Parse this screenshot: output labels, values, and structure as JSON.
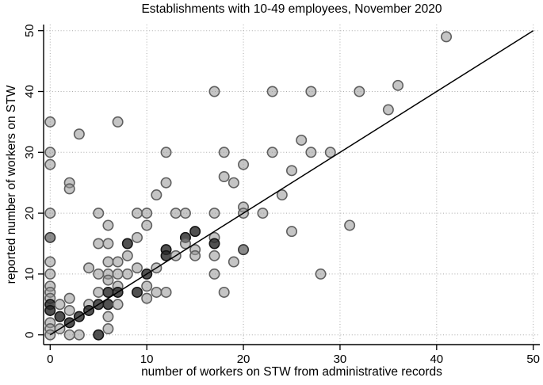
{
  "chart_data": {
    "type": "scatter",
    "title": "Establishments with 10-49 employees, November 2020",
    "xlabel": "number of workers on STW from administrative records",
    "ylabel": "reported number of workers on STW",
    "xlim": [
      0,
      50
    ],
    "ylim": [
      0,
      50
    ],
    "xticks": [
      0,
      10,
      20,
      30,
      40,
      50
    ],
    "yticks": [
      0,
      10,
      20,
      30,
      40,
      50
    ],
    "grid": "dotted-both-axes",
    "legend": "none",
    "reference_line": {
      "from": [
        0,
        0
      ],
      "to": [
        50,
        50
      ],
      "meaning": "45-degree line"
    },
    "marker_shades": {
      "g": "#969696",
      "m": "#5a5a5a",
      "d": "#2b2b2b"
    },
    "points": [
      [
        41,
        49,
        "g"
      ],
      [
        36,
        41,
        "g"
      ],
      [
        17,
        40,
        "g"
      ],
      [
        23,
        40,
        "g"
      ],
      [
        27,
        40,
        "g"
      ],
      [
        32,
        40,
        "g"
      ],
      [
        35,
        37,
        "g"
      ],
      [
        0,
        35,
        "g"
      ],
      [
        7,
        35,
        "g"
      ],
      [
        3,
        33,
        "g"
      ],
      [
        26,
        32,
        "g"
      ],
      [
        0,
        30,
        "g"
      ],
      [
        12,
        30,
        "g"
      ],
      [
        18,
        30,
        "g"
      ],
      [
        23,
        30,
        "g"
      ],
      [
        27,
        30,
        "g"
      ],
      [
        29,
        30,
        "g"
      ],
      [
        0,
        28,
        "g"
      ],
      [
        20,
        28,
        "g"
      ],
      [
        25,
        27,
        "g"
      ],
      [
        18,
        26,
        "g"
      ],
      [
        2,
        25,
        "g"
      ],
      [
        12,
        25,
        "g"
      ],
      [
        19,
        25,
        "g"
      ],
      [
        2,
        24,
        "g"
      ],
      [
        11,
        23,
        "g"
      ],
      [
        24,
        23,
        "g"
      ],
      [
        20,
        21,
        "g"
      ],
      [
        0,
        20,
        "g"
      ],
      [
        5,
        20,
        "g"
      ],
      [
        9,
        20,
        "g"
      ],
      [
        10,
        20,
        "g"
      ],
      [
        13,
        20,
        "g"
      ],
      [
        14,
        20,
        "g"
      ],
      [
        17,
        20,
        "g"
      ],
      [
        20,
        20,
        "g"
      ],
      [
        22,
        20,
        "g"
      ],
      [
        6,
        18,
        "g"
      ],
      [
        10,
        18,
        "g"
      ],
      [
        31,
        18,
        "g"
      ],
      [
        15,
        17,
        "d"
      ],
      [
        25,
        17,
        "g"
      ],
      [
        0,
        16,
        "m"
      ],
      [
        9,
        16,
        "g"
      ],
      [
        14,
        16,
        "d"
      ],
      [
        17,
        16,
        "g"
      ],
      [
        5,
        15,
        "g"
      ],
      [
        6,
        15,
        "g"
      ],
      [
        8,
        15,
        "d"
      ],
      [
        14,
        15,
        "g"
      ],
      [
        17,
        15,
        "d"
      ],
      [
        12,
        14,
        "d"
      ],
      [
        15,
        14,
        "g"
      ],
      [
        20,
        14,
        "m"
      ],
      [
        8,
        13,
        "g"
      ],
      [
        12,
        13,
        "d"
      ],
      [
        13,
        13,
        "g"
      ],
      [
        15,
        13,
        "g"
      ],
      [
        17,
        13,
        "g"
      ],
      [
        0,
        12,
        "g"
      ],
      [
        6,
        12,
        "g"
      ],
      [
        7,
        12,
        "g"
      ],
      [
        19,
        12,
        "g"
      ],
      [
        4,
        11,
        "g"
      ],
      [
        9,
        11,
        "g"
      ],
      [
        11,
        11,
        "g"
      ],
      [
        0,
        10,
        "g"
      ],
      [
        5,
        10,
        "g"
      ],
      [
        6,
        10,
        "g"
      ],
      [
        7,
        10,
        "g"
      ],
      [
        8,
        10,
        "g"
      ],
      [
        10,
        10,
        "d"
      ],
      [
        17,
        10,
        "g"
      ],
      [
        28,
        10,
        "g"
      ],
      [
        6,
        9,
        "g"
      ],
      [
        0,
        8,
        "g"
      ],
      [
        7,
        8,
        "g"
      ],
      [
        10,
        8,
        "g"
      ],
      [
        0,
        7,
        "g"
      ],
      [
        5,
        7,
        "g"
      ],
      [
        6,
        7,
        "d"
      ],
      [
        7,
        7,
        "d"
      ],
      [
        9,
        7,
        "d"
      ],
      [
        11,
        7,
        "g"
      ],
      [
        12,
        7,
        "g"
      ],
      [
        18,
        7,
        "g"
      ],
      [
        0,
        6,
        "g"
      ],
      [
        2,
        6,
        "g"
      ],
      [
        10,
        6,
        "g"
      ],
      [
        0,
        5,
        "d"
      ],
      [
        1,
        5,
        "g"
      ],
      [
        4,
        5,
        "g"
      ],
      [
        5,
        5,
        "d"
      ],
      [
        6,
        5,
        "d"
      ],
      [
        7,
        5,
        "g"
      ],
      [
        0,
        4,
        "d"
      ],
      [
        2,
        4,
        "g"
      ],
      [
        4,
        4,
        "d"
      ],
      [
        1,
        3,
        "d"
      ],
      [
        3,
        3,
        "d"
      ],
      [
        6,
        3,
        "g"
      ],
      [
        0,
        2,
        "g"
      ],
      [
        2,
        2,
        "d"
      ],
      [
        0,
        1,
        "g"
      ],
      [
        1,
        1,
        "g"
      ],
      [
        6,
        1,
        "g"
      ],
      [
        0,
        0,
        "g"
      ],
      [
        2,
        0,
        "g"
      ],
      [
        3,
        0,
        "g"
      ],
      [
        5,
        0,
        "d"
      ]
    ]
  }
}
